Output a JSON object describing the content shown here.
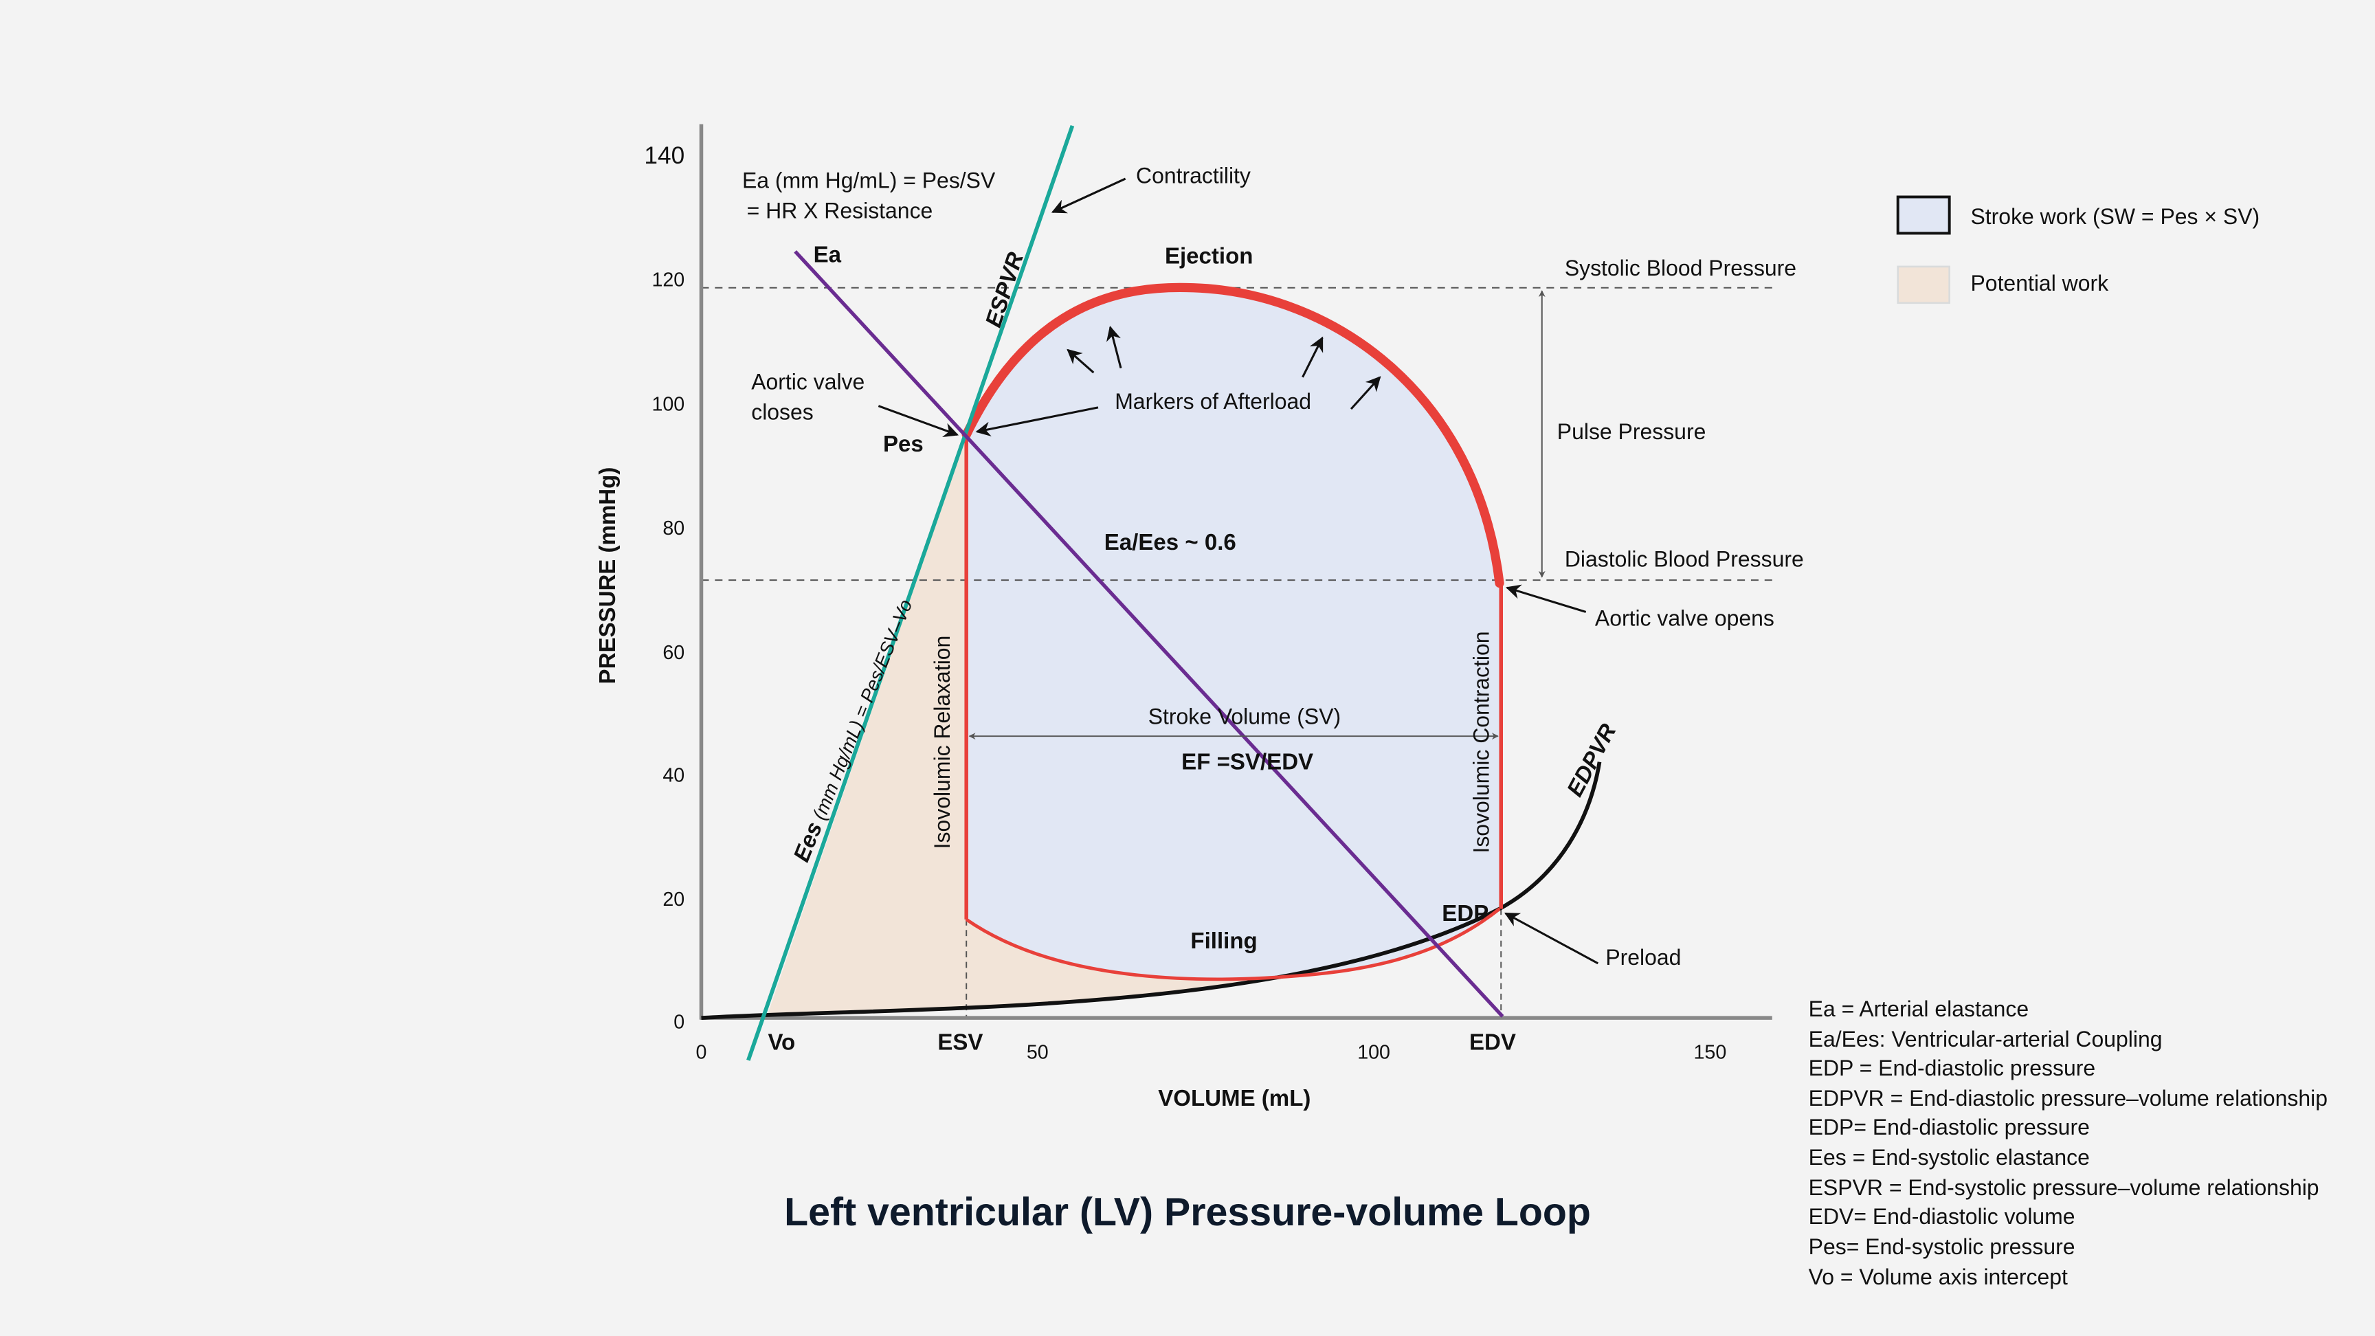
{
  "title": "Left ventricular (LV) Pressure-volume Loop",
  "axes": {
    "y_label": "PRESSURE (mmHg)",
    "x_label": "VOLUME (mL)",
    "y_ticks": [
      "0",
      "20",
      "40",
      "60",
      "80",
      "100",
      "120",
      "140"
    ],
    "x_ticks": [
      "0",
      "50",
      "100",
      "150"
    ],
    "x_markers": {
      "vo": "Vo",
      "esv": "ESV",
      "edv": "EDV"
    }
  },
  "colors": {
    "loop": "#e8403a",
    "espvr": "#1aa89a",
    "ea": "#6a2c91",
    "edpvr": "#111111",
    "stroke_work_fill": "#e1e7f4",
    "potential_work_fill": "#f2e4d8",
    "background": "#f3f3f3"
  },
  "annotations": {
    "ea_formula_1": "Ea (mm Hg/mL) = Pes/SV",
    "ea_formula_2": "= HR X Resistance",
    "ea": "Ea",
    "espvr": "ESPVR",
    "contractility": "Contractility",
    "ejection": "Ejection",
    "systolic_bp": "Systolic Blood Pressure",
    "aortic_valve_closes_1": "Aortic valve",
    "aortic_valve_closes_2": "closes",
    "pes": "Pes",
    "markers_afterload": "Markers of Afterload",
    "pulse_pressure": "Pulse Pressure",
    "ea_ees": "Ea/Ees ~ 0.6",
    "diastolic_bp": "Diastolic Blood Pressure",
    "aortic_valve_opens": "Aortic valve opens",
    "ees_bold": "Ees",
    "ees_formula": "(mm Hg/mL) = Pes/ESV–Vo",
    "iso_relax": "Isovolumic Relaxation",
    "iso_contract": "Isovolumic Contraction",
    "stroke_volume": "Stroke Volume (SV)",
    "ef": "EF =SV/EDV",
    "filling": "Filling",
    "edp": "EDP",
    "preload": "Preload",
    "edpvr": "EDPVR"
  },
  "legend": [
    {
      "label": "Stroke work (SW = Pes × SV)",
      "color": "#e1e7f4"
    },
    {
      "label": "Potential work",
      "color": "#f2e4d8"
    }
  ],
  "abbreviations": [
    "Ea = Arterial elastance",
    "Ea/Ees: Ventricular-arterial Coupling",
    "EDP = End-diastolic pressure",
    "EDPVR = End-diastolic pressure–volume relationship",
    "EDP= End-diastolic pressure",
    "Ees = End-systolic elastance",
    "ESPVR = End-systolic pressure–volume relationship",
    "EDV= End-diastolic volume",
    "Pes= End-systolic pressure",
    "Vo = Volume axis intercept"
  ]
}
